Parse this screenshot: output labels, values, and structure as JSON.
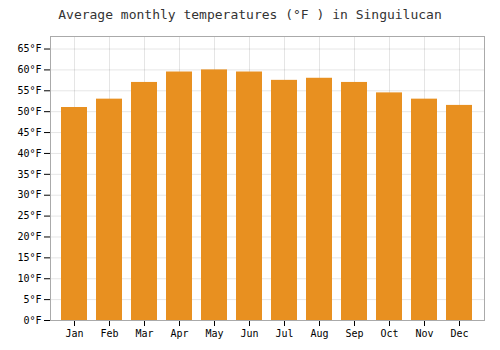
{
  "chart_data": {
    "type": "bar",
    "title": "Average monthly temperatures (°F ) in Singuilucan",
    "categories": [
      "Jan",
      "Feb",
      "Mar",
      "Apr",
      "May",
      "Jun",
      "Jul",
      "Aug",
      "Sep",
      "Oct",
      "Nov",
      "Dec"
    ],
    "values": [
      51,
      53,
      57,
      59.5,
      60,
      59.5,
      57.5,
      58,
      57,
      54.5,
      53,
      51.5
    ],
    "color": "#E89020",
    "ylim": [
      0,
      68
    ],
    "yticks": [
      {
        "value": 0,
        "label": "0°F"
      },
      {
        "value": 5,
        "label": "5°F"
      },
      {
        "value": 10,
        "label": "10°F"
      },
      {
        "value": 15,
        "label": "15°F"
      },
      {
        "value": 20,
        "label": "20°F"
      },
      {
        "value": 25,
        "label": "25°F"
      },
      {
        "value": 30,
        "label": "30°F"
      },
      {
        "value": 35,
        "label": "35°F"
      },
      {
        "value": 40,
        "label": "40°F"
      },
      {
        "value": 45,
        "label": "45°F"
      },
      {
        "value": 50,
        "label": "50°F"
      },
      {
        "value": 55,
        "label": "55°F"
      },
      {
        "value": 60,
        "label": "60°F"
      },
      {
        "value": 65,
        "label": "65°F"
      }
    ],
    "grid": true
  }
}
